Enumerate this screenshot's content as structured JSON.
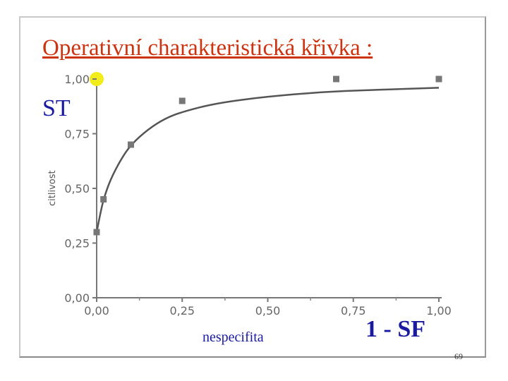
{
  "slide": {
    "title": "Operativní charakteristická křivka :",
    "y_annotation": "ST",
    "x_annotation_1": "nespecifita",
    "x_annotation_2": "1 - SF",
    "page_number": "69"
  },
  "colors": {
    "title": "#cc3311",
    "annotation": "#1a1aa0",
    "curve": "#555555",
    "marker": "#777777",
    "highlight": "#f2ec1a"
  },
  "chart_data": {
    "type": "scatter",
    "title": "",
    "xlabel": "",
    "ylabel": "citlivost",
    "xlim": [
      0,
      1
    ],
    "ylim": [
      0,
      1
    ],
    "x_ticks": [
      "0,00",
      "0,25",
      "0,50",
      "0,75",
      "1,00"
    ],
    "y_ticks": [
      "0,00",
      "0,25",
      "0,50",
      "0,75",
      "1,00"
    ],
    "grid": false,
    "series": [
      {
        "points": [
          {
            "x": 0.0,
            "y": 0.3
          },
          {
            "x": 0.02,
            "y": 0.45
          },
          {
            "x": 0.1,
            "y": 0.7
          },
          {
            "x": 0.25,
            "y": 0.9
          },
          {
            "x": 0.7,
            "y": 1.0
          },
          {
            "x": 1.0,
            "y": 1.0
          }
        ]
      }
    ],
    "fitted_curve": [
      {
        "x": 0.0,
        "y": 0.3
      },
      {
        "x": 0.01,
        "y": 0.38
      },
      {
        "x": 0.02,
        "y": 0.45
      },
      {
        "x": 0.04,
        "y": 0.54
      },
      {
        "x": 0.07,
        "y": 0.63
      },
      {
        "x": 0.1,
        "y": 0.7
      },
      {
        "x": 0.15,
        "y": 0.77
      },
      {
        "x": 0.2,
        "y": 0.82
      },
      {
        "x": 0.25,
        "y": 0.85
      },
      {
        "x": 0.35,
        "y": 0.89
      },
      {
        "x": 0.5,
        "y": 0.92
      },
      {
        "x": 0.65,
        "y": 0.94
      },
      {
        "x": 0.8,
        "y": 0.95
      },
      {
        "x": 1.0,
        "y": 0.96
      }
    ],
    "highlight_point": {
      "x": 0.0,
      "y": 1.0
    }
  }
}
